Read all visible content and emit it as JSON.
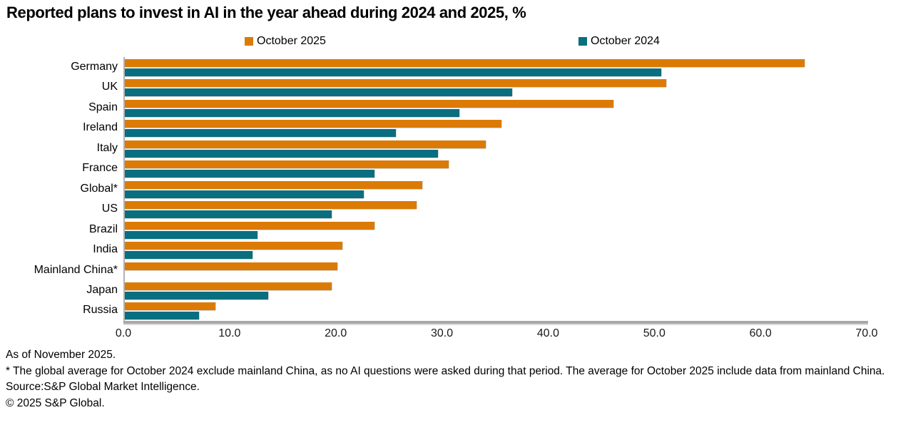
{
  "title": "Reported plans to invest in AI in the year ahead during 2024 and 2025, %",
  "chart_data": {
    "type": "bar",
    "orientation": "horizontal",
    "title": "Reported plans to invest in AI in the year ahead during 2024 and 2025, %",
    "categories": [
      "Germany",
      "UK",
      "Spain",
      "Ireland",
      "Italy",
      "France",
      "Global*",
      "US",
      "Brazil",
      "India",
      "Mainland China*",
      "Japan",
      "Russia"
    ],
    "series": [
      {
        "name": "October 2025",
        "color": "#DB7B05",
        "values": [
          64.0,
          51.0,
          46.0,
          35.5,
          34.0,
          30.5,
          28.0,
          27.5,
          23.5,
          20.5,
          20.0,
          19.5,
          8.5
        ]
      },
      {
        "name": "October 2024",
        "color": "#086E80",
        "values": [
          50.5,
          36.5,
          31.5,
          25.5,
          29.5,
          23.5,
          22.5,
          19.5,
          12.5,
          12.0,
          0,
          13.5,
          7.0
        ]
      }
    ],
    "xlim": [
      0,
      70
    ],
    "x_tick_labels": [
      "0.0",
      "10.0",
      "20.0",
      "30.0",
      "40.0",
      "50.0",
      "60.0",
      "70.0"
    ],
    "xlabel": "",
    "ylabel": "",
    "legend_position": "top",
    "grid": false
  },
  "axis_colors": {
    "axis_line": "#b3b3b3",
    "baseline": "#a8a8a8"
  },
  "footer": {
    "as_of": "As of November 2025.",
    "note": "* The global average for October 2024 exclude mainland China, as no AI questions were asked during that period. The average for October 2025 include data from mainland China.",
    "source": "Source:S&P Global Market Intelligence.",
    "copyright": "© 2025 S&P Global."
  }
}
